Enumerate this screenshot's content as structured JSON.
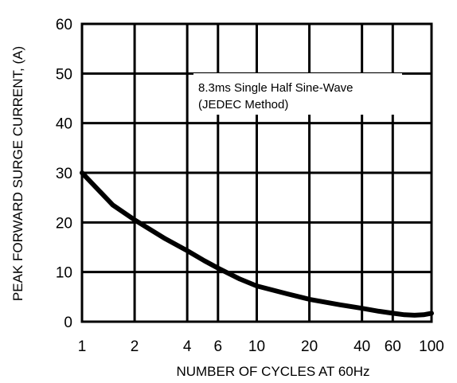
{
  "chart_data": {
    "type": "line",
    "xlabel": "NUMBER OF CYCLES AT 60Hz",
    "ylabel": "PEAK FORWARD SURGE CURRENT, (A)",
    "ylim": [
      0,
      60
    ],
    "x_scale": "log",
    "x_ticks": [
      "1",
      "2",
      "4",
      "6",
      "10",
      "20",
      "40",
      "60",
      "100"
    ],
    "y_ticks": [
      "0",
      "10",
      "20",
      "30",
      "40",
      "50",
      "60"
    ],
    "annotation": [
      "8.3ms Single Half Sine-Wave",
      "(JEDEC Method)"
    ],
    "grid": true,
    "series": [
      {
        "x": [
          1,
          1.5,
          2,
          3,
          4,
          5,
          6,
          8,
          10,
          15,
          20,
          30,
          40,
          50,
          60,
          70,
          80,
          90,
          100
        ],
        "values": [
          30,
          23.5,
          20.5,
          16.7,
          14.3,
          12.3,
          10.8,
          8.6,
          7.2,
          5.6,
          4.5,
          3.4,
          2.7,
          2.1,
          1.7,
          1.4,
          1.3,
          1.4,
          1.7
        ]
      }
    ],
    "line_color": "#000000"
  }
}
